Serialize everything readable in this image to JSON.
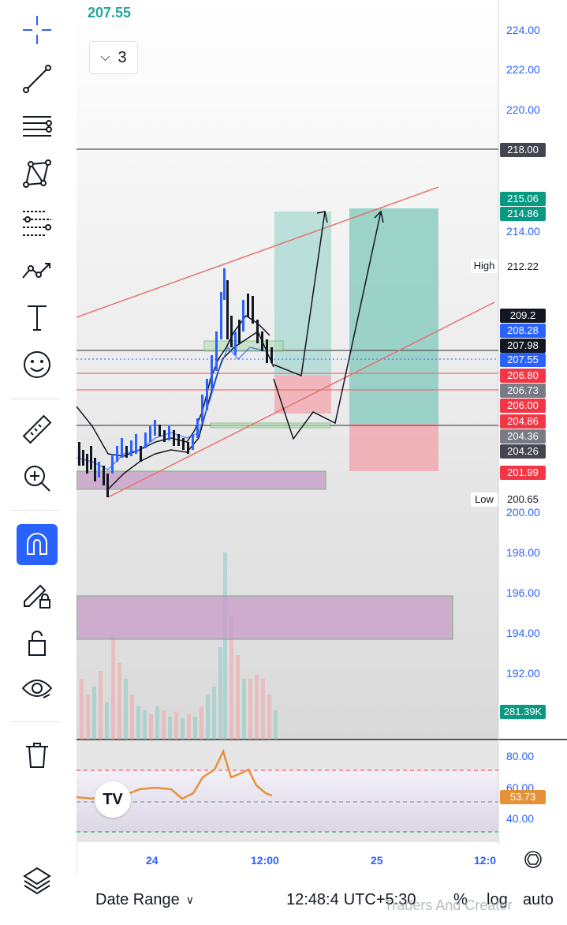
{
  "header": {
    "current_price": "207.55",
    "collapse_count": "3"
  },
  "toolbar": {
    "items": [
      {
        "name": "crosshair-icon"
      },
      {
        "name": "trend-line-icon"
      },
      {
        "name": "horizontal-lines-icon"
      },
      {
        "name": "pattern-icon"
      },
      {
        "name": "fib-icon"
      },
      {
        "name": "prediction-icon"
      },
      {
        "name": "text-icon"
      },
      {
        "name": "emoji-icon"
      },
      {
        "name": "ruler-icon"
      },
      {
        "name": "zoom-icon"
      },
      {
        "name": "magnet-icon",
        "active": true
      },
      {
        "name": "lock-drawing-icon"
      },
      {
        "name": "lock-icon"
      },
      {
        "name": "eye-icon"
      },
      {
        "name": "trash-icon"
      },
      {
        "name": "layers-icon"
      }
    ]
  },
  "price_axis": {
    "labels": [
      "224.00",
      "222.00",
      "220.00",
      "214.00",
      "200.00",
      "198.00",
      "196.00",
      "194.00",
      "192.00"
    ],
    "tags": [
      {
        "value": "218.00",
        "color": "#434651"
      },
      {
        "value": "215.06",
        "color": "#089981"
      },
      {
        "value": "214.86",
        "color": "#089981"
      },
      {
        "value": "209.2",
        "color": "#131722"
      },
      {
        "value": "208.28",
        "color": "#2962ff"
      },
      {
        "value": "207.98",
        "color": "#131722"
      },
      {
        "value": "207.55",
        "color": "#2962ff"
      },
      {
        "value": "206.80",
        "color": "#f23645"
      },
      {
        "value": "206.73",
        "color": "#787b86"
      },
      {
        "value": "206.00",
        "color": "#f23645"
      },
      {
        "value": "204.86",
        "color": "#f23645"
      },
      {
        "value": "204.36",
        "color": "#787b86"
      },
      {
        "value": "204.26",
        "color": "#434651"
      },
      {
        "value": "201.99",
        "color": "#f23645"
      },
      {
        "value": "281.39K",
        "color": "#089981"
      }
    ],
    "high_label": "High",
    "high_value": "212.22",
    "low_label": "Low",
    "low_value": "200.65"
  },
  "oscillator": {
    "labels": [
      "80.00",
      "60.00",
      "40.00"
    ],
    "current": "53.73",
    "current_color": "#ff9800"
  },
  "time_axis": {
    "labels": [
      "24",
      "12:00",
      "25",
      "12:0"
    ]
  },
  "bottom_bar": {
    "date_range": "Date Range",
    "time": "12:48:4",
    "timezone": "UTC+5:30",
    "percent": "%",
    "log": "log",
    "auto": "auto",
    "watermark": "Traders And Creator"
  },
  "logo_text": "TV"
}
